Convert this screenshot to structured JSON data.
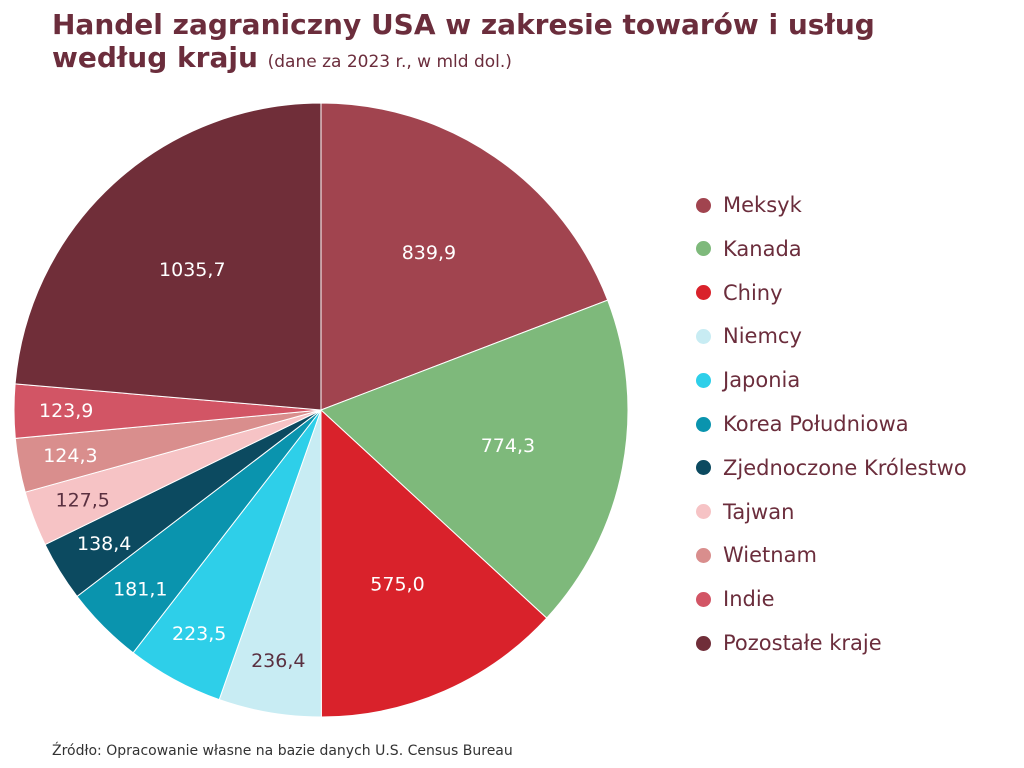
{
  "title": {
    "main_line1": "Handel zagraniczny USA w zakresie towarów i usług",
    "main_line2": "według kraju",
    "subtitle": "(dane za 2023 r., w mld dol.)"
  },
  "chart_data": {
    "type": "pie",
    "start": "12 o'clock, clockwise",
    "legend_placement": "right",
    "slices": [
      {
        "label": "Meksyk",
        "value": 839.9,
        "value_text": "839,9",
        "color": "#a1444f",
        "text_color": "#ffffff"
      },
      {
        "label": "Kanada",
        "value": 774.3,
        "value_text": "774,3",
        "color": "#7eb97b",
        "text_color": "#ffffff"
      },
      {
        "label": "Chiny",
        "value": 575.0,
        "value_text": "575,0",
        "color": "#d9222b",
        "text_color": "#ffffff"
      },
      {
        "label": "Niemcy",
        "value": 236.4,
        "value_text": "236,4",
        "color": "#c8ecf3",
        "text_color": "#5a3040"
      },
      {
        "label": "Japonia",
        "value": 223.5,
        "value_text": "223,5",
        "color": "#2ecfe9",
        "text_color": "#ffffff"
      },
      {
        "label": "Korea Południowa",
        "value": 181.1,
        "value_text": "181,1",
        "color": "#0a94ae",
        "text_color": "#ffffff"
      },
      {
        "label": "Zjednoczone Królestwo",
        "value": 138.4,
        "value_text": "138,4",
        "color": "#0c4a60",
        "text_color": "#ffffff"
      },
      {
        "label": "Tajwan",
        "value": 127.5,
        "value_text": "127,5",
        "color": "#f6c3c5",
        "text_color": "#5a3040"
      },
      {
        "label": "Wietnam",
        "value": 124.3,
        "value_text": "124,3",
        "color": "#d98e8d",
        "text_color": "#ffffff"
      },
      {
        "label": "Indie",
        "value": 123.9,
        "value_text": "123,9",
        "color": "#d25565",
        "text_color": "#ffffff"
      },
      {
        "label": "Pozostałe kraje",
        "value": 1035.7,
        "value_text": "1035,7",
        "color": "#702e39",
        "text_color": "#ffffff"
      }
    ]
  },
  "source": "Źródło: Opracowanie własne na bazie danych U.S. Census Bureau"
}
